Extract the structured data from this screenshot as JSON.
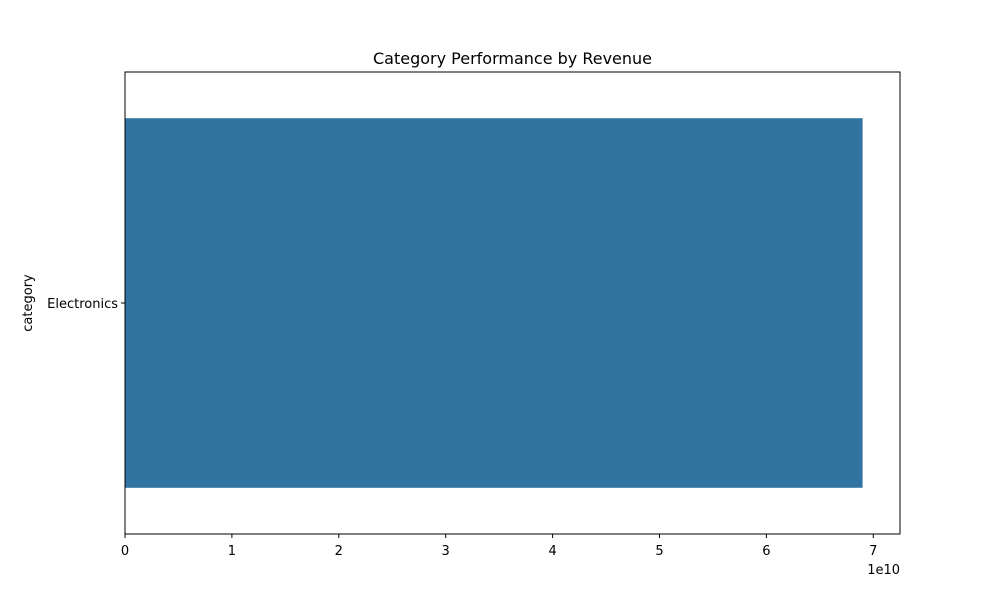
{
  "chart_data": {
    "type": "bar",
    "orientation": "horizontal",
    "title": "Category Performance by Revenue",
    "ylabel": "category",
    "xlabel": "",
    "categories": [
      "Electronics"
    ],
    "values": [
      69000000000
    ],
    "xlim": [
      0,
      72500000000
    ],
    "x_ticks": [
      0,
      10000000000,
      20000000000,
      30000000000,
      40000000000,
      50000000000,
      60000000000,
      70000000000
    ],
    "x_tick_labels": [
      "0",
      "1",
      "2",
      "3",
      "4",
      "5",
      "6",
      "7"
    ],
    "x_offset_label": "1e10",
    "grid": false,
    "legend": "none",
    "colors": {
      "bar": "#3274a1",
      "axis": "#000000",
      "background": "#ffffff"
    }
  }
}
